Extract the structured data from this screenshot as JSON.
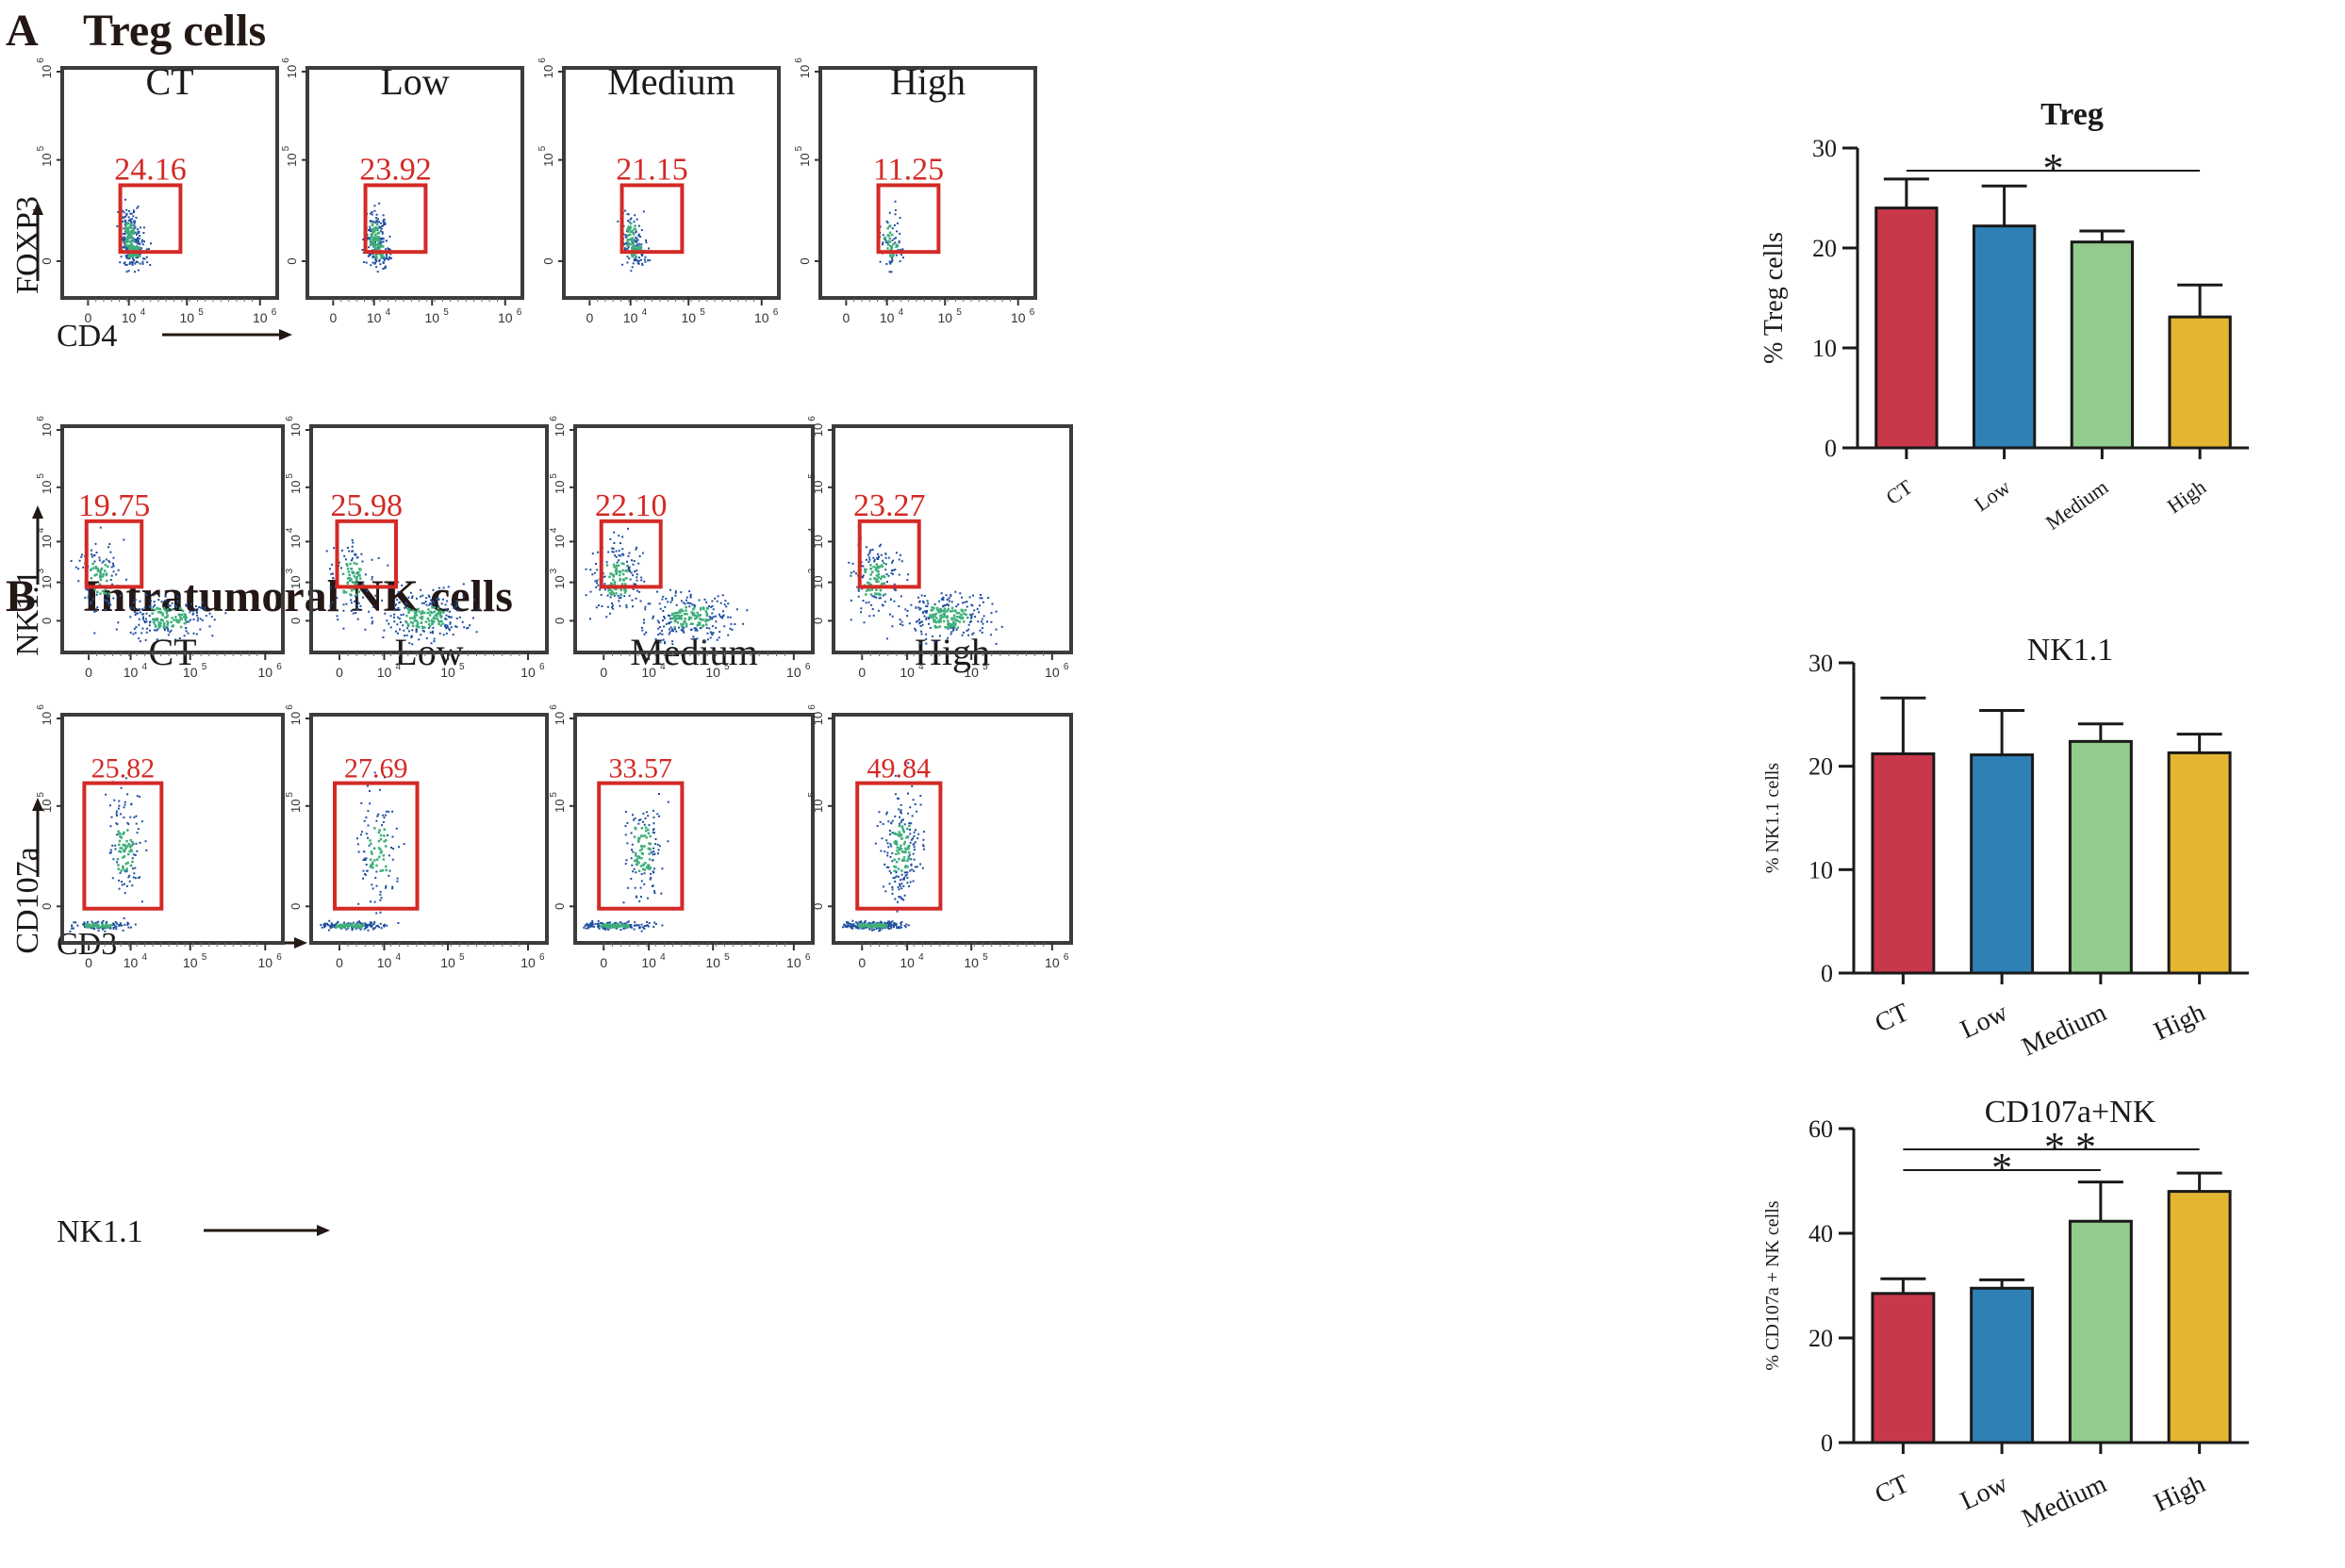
{
  "sections": [
    {
      "letter": "A",
      "title": "Treg cells"
    },
    {
      "letter": "B",
      "title": "Intratumoral NK cells"
    }
  ],
  "conditions": [
    "CT",
    "Low",
    "Medium",
    "High"
  ],
  "flow_rows": [
    {
      "id": "treg",
      "x_label": "CD4",
      "y_label": "FOXP3",
      "x_ticks": [
        "0",
        "10",
        "10",
        "10"
      ],
      "x_tick_sups": [
        "",
        "4",
        "5",
        "6"
      ],
      "y_ticks": [
        "0",
        "10",
        "10"
      ],
      "y_tick_sups": [
        "",
        "5",
        "6"
      ],
      "gate_values": [
        "24.16",
        "23.92",
        "21.15",
        "11.25"
      ]
    },
    {
      "id": "nk",
      "x_label": "CD3",
      "y_label": "NK1.1",
      "x_ticks": [
        "0",
        "10",
        "10",
        "10"
      ],
      "x_tick_sups": [
        "",
        "4",
        "5",
        "6"
      ],
      "y_ticks": [
        "0",
        "10",
        "10",
        "10",
        "10"
      ],
      "y_tick_sups": [
        "",
        "3",
        "4",
        "5",
        "6"
      ],
      "gate_values": [
        "19.75",
        "25.98",
        "22.10",
        "23.27"
      ]
    },
    {
      "id": "cd107a",
      "x_label": "NK1.1",
      "y_label": "CD107a",
      "x_ticks": [
        "0",
        "10",
        "10",
        "10"
      ],
      "x_tick_sups": [
        "",
        "4",
        "5",
        "6"
      ],
      "y_ticks": [
        "0",
        "10",
        "10"
      ],
      "y_tick_sups": [
        "",
        "5",
        "6"
      ],
      "gate_values": [
        "25.82",
        "27.69",
        "33.57",
        "49.84"
      ]
    }
  ],
  "colors": {
    "CT": "#c8374a",
    "Low": "#2e80b5",
    "Medium": "#92cb8b",
    "High": "#e3b530",
    "gate": "#d32a26",
    "text": "#231815"
  },
  "chart_data": [
    {
      "type": "bar",
      "title": "Treg",
      "ylabel": "% Treg cells",
      "categories": [
        "CT",
        "Low",
        "Medium",
        "High"
      ],
      "values": [
        24.0,
        22.2,
        20.6,
        13.1
      ],
      "errors": [
        2.9,
        4.0,
        1.1,
        3.2
      ],
      "ylim": [
        0,
        30
      ],
      "yticks": [
        "0",
        "10",
        "20",
        "30"
      ],
      "significance": [
        {
          "from": "CT",
          "to": "High",
          "label": "*"
        }
      ]
    },
    {
      "type": "bar",
      "title": "NK1.1",
      "ylabel": "% NK1.1 cells",
      "categories": [
        "CT",
        "Low",
        "Medium",
        "High"
      ],
      "values": [
        21.2,
        21.1,
        22.4,
        21.3
      ],
      "errors": [
        5.4,
        4.3,
        1.7,
        1.8
      ],
      "ylim": [
        0,
        30
      ],
      "yticks": [
        "0",
        "10",
        "20",
        "30"
      ],
      "significance": []
    },
    {
      "type": "bar",
      "title": "CD107a+NK",
      "ylabel": "% CD107a + NK cells",
      "categories": [
        "CT",
        "Low",
        "Medium",
        "High"
      ],
      "values": [
        28.5,
        29.5,
        42.3,
        48.0
      ],
      "errors": [
        2.8,
        1.6,
        7.5,
        3.5
      ],
      "ylim": [
        0,
        60
      ],
      "yticks": [
        "0",
        "20",
        "40",
        "60"
      ],
      "significance": [
        {
          "from": "CT",
          "to": "High",
          "label": "* *"
        },
        {
          "from": "CT",
          "to": "Medium",
          "label": "*"
        }
      ]
    }
  ]
}
